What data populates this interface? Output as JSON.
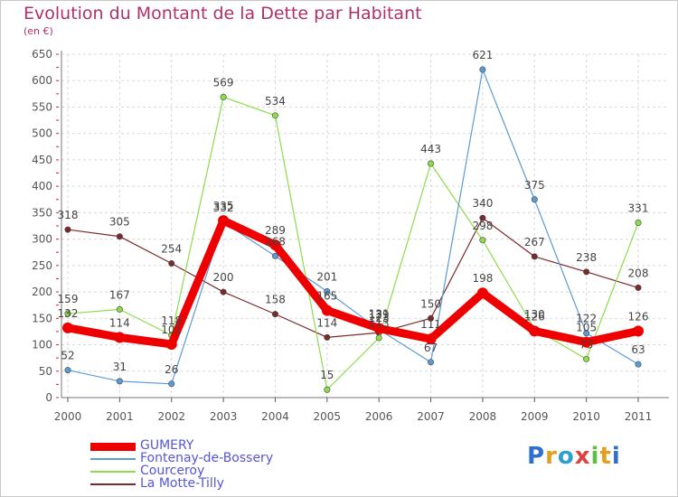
{
  "header": {
    "title": "Evolution du Montant de la Dette par Habitant",
    "subtitle": "(en €)"
  },
  "logo": {
    "text": "Proxiti"
  },
  "chart_data": {
    "type": "line",
    "title": "Evolution du Montant de la Dette par Habitant",
    "subtitle": "(en €)",
    "xlabel": "",
    "ylabel": "",
    "x": [
      "2000",
      "2001",
      "2002",
      "2003",
      "2004",
      "2005",
      "2006",
      "2007",
      "2008",
      "2009",
      "2010",
      "2011"
    ],
    "ylim": [
      0,
      650
    ],
    "yticks": [
      0,
      50,
      100,
      150,
      200,
      250,
      300,
      350,
      400,
      450,
      500,
      550,
      600,
      650
    ],
    "grid": true,
    "legend": "bottom-left",
    "series": [
      {
        "name": "GUMERY",
        "color": "#ee0000",
        "values": [
          132,
          114,
          101,
          335,
          289,
          165,
          131,
          111,
          198,
          126,
          105,
          126
        ]
      },
      {
        "name": "Fontenay-de-Bossery",
        "color": "#5b9bd5",
        "values": [
          52,
          31,
          26,
          332,
          268,
          201,
          129,
          67,
          621,
          375,
          122,
          63
        ]
      },
      {
        "name": "Courceroy",
        "color": "#8ddc4c",
        "values": [
          159,
          167,
          118,
          569,
          534,
          15,
          113,
          443,
          298,
          130,
          73,
          331
        ]
      },
      {
        "name": "La Motte-Tilly",
        "color": "#7a2a2a",
        "values": [
          318,
          305,
          254,
          200,
          158,
          114,
          123,
          150,
          340,
          267,
          238,
          208
        ]
      }
    ]
  }
}
